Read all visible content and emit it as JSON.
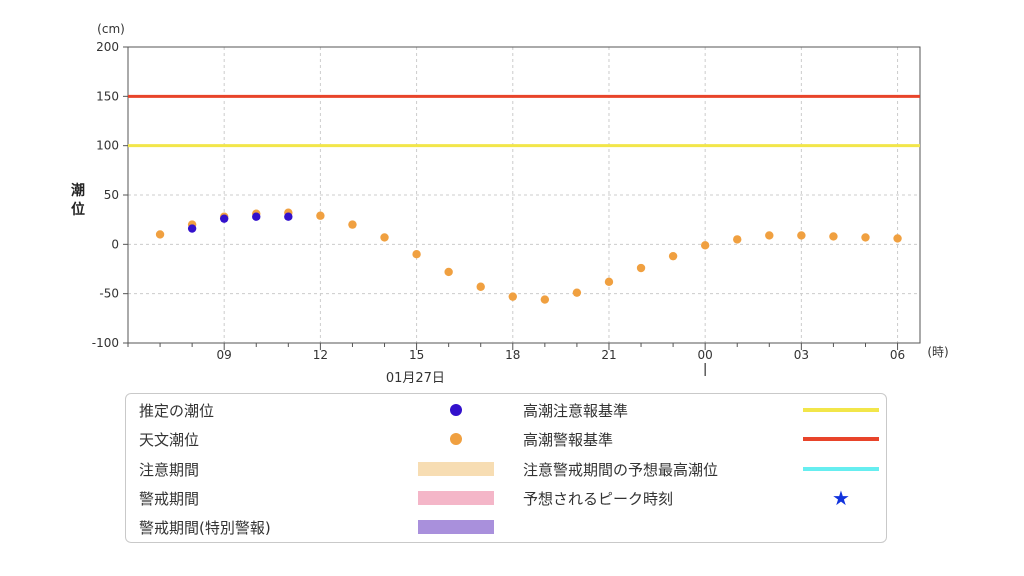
{
  "chart_data": {
    "type": "scatter",
    "y_unit": "(cm)",
    "ylabel": "潮位",
    "x_unit": "(時)",
    "date_label": "01月27日",
    "ylim": [
      -100,
      200
    ],
    "yticks": [
      -100,
      -50,
      0,
      50,
      100,
      150,
      200
    ],
    "x_range_hours": [
      6,
      30.7
    ],
    "x_ticks": [
      {
        "h": 9,
        "label": "09"
      },
      {
        "h": 12,
        "label": "12"
      },
      {
        "h": 15,
        "label": "15"
      },
      {
        "h": 18,
        "label": "18"
      },
      {
        "h": 21,
        "label": "21"
      },
      {
        "h": 24,
        "label": "00"
      },
      {
        "h": 27,
        "label": "03"
      },
      {
        "h": 30,
        "label": "06"
      }
    ],
    "grid": true,
    "reference_lines": [
      {
        "name": "高潮注意報基準",
        "value": 100,
        "color": "#f2e64a"
      },
      {
        "name": "高潮警報基準",
        "value": 150,
        "color": "#e8442a"
      }
    ],
    "series": [
      {
        "name": "天文潮位",
        "color": "#f0a040",
        "x": [
          7,
          8,
          9,
          10,
          11,
          12,
          13,
          14,
          15,
          16,
          17,
          18,
          19,
          20,
          21,
          22,
          23,
          24,
          25,
          26,
          27,
          28,
          29,
          30
        ],
        "values": [
          10,
          20,
          28,
          31,
          32,
          29,
          20,
          7,
          -10,
          -28,
          -43,
          -53,
          -56,
          -49,
          -38,
          -24,
          -12,
          -1,
          5,
          9,
          9,
          8,
          7,
          6
        ]
      },
      {
        "name": "推定の潮位",
        "color": "#3311cc",
        "x": [
          8,
          9,
          10,
          11
        ],
        "values": [
          16,
          26,
          28,
          28
        ]
      }
    ]
  },
  "legend": {
    "items": [
      {
        "label": "推定の潮位",
        "kind": "dot",
        "color": "#3311cc"
      },
      {
        "label": "天文潮位",
        "kind": "dot",
        "color": "#f0a040"
      },
      {
        "label": "注意期間",
        "kind": "swatch",
        "color": "#f7ddb3"
      },
      {
        "label": "警戒期間",
        "kind": "swatch",
        "color": "#f4b6c8"
      },
      {
        "label": "警戒期間(特別警報)",
        "kind": "swatch",
        "color": "#a990dc"
      },
      {
        "label": "高潮注意報基準",
        "kind": "line",
        "color": "#f2e64a"
      },
      {
        "label": "高潮警報基準",
        "kind": "line",
        "color": "#e8442a"
      },
      {
        "label": "注意警戒期間の予想最高潮位",
        "kind": "line",
        "color": "#66eef0"
      },
      {
        "label": "予想されるピーク時刻",
        "kind": "star",
        "color": "#1133dd",
        "glyph": "★"
      }
    ]
  }
}
